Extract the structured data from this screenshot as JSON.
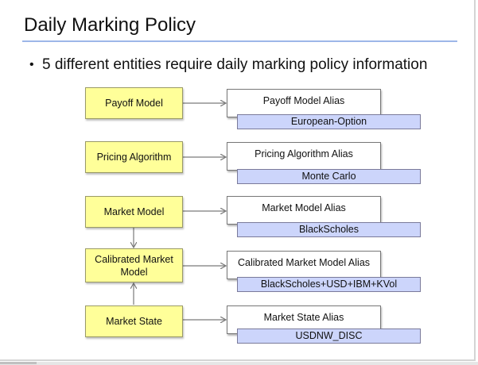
{
  "slide": {
    "title": "Daily Marking Policy",
    "bullet": "5 different entities require daily marking policy information",
    "bullet_glyph": "•"
  },
  "diagram": {
    "entities": [
      {
        "name": "Payoff Model",
        "alias_label": "Payoff Model Alias",
        "alias_value": "European-Option"
      },
      {
        "name": "Pricing Algorithm",
        "alias_label": "Pricing Algorithm Alias",
        "alias_value": "Monte Carlo"
      },
      {
        "name": "Market Model",
        "alias_label": "Market Model Alias",
        "alias_value": "BlackScholes"
      },
      {
        "name": "Calibrated Market Model",
        "alias_label": "Calibrated Market Model Alias",
        "alias_value": "BlackScholes+USD+IBM+KVol"
      },
      {
        "name": "Market State",
        "alias_label": "Market State Alias",
        "alias_value": "USDNW_DISC"
      }
    ]
  },
  "colors": {
    "entity_fill": "#ffff99",
    "alias_value_fill": "#ccd5fb",
    "title_rule": "#9db7e8",
    "arrow": "#7a7a7a"
  }
}
